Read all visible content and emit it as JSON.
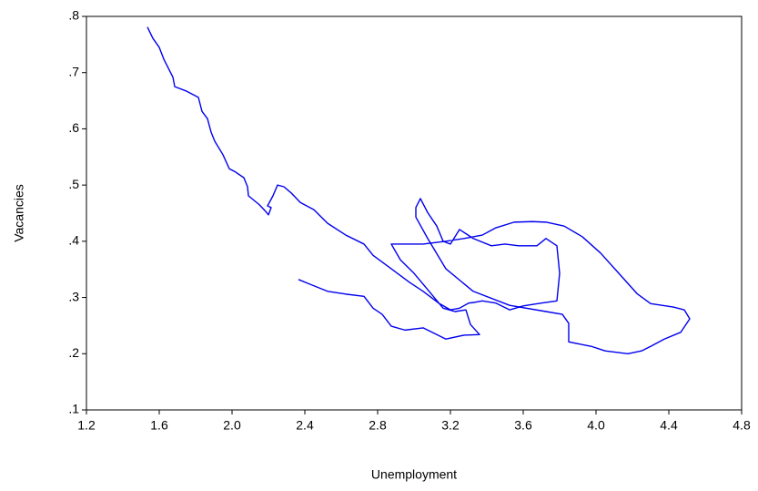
{
  "chart_data": {
    "type": "line",
    "x_label": "Unemployment",
    "y_label": "Vacancies",
    "xlim": [
      1.2,
      4.8
    ],
    "xticks": [
      1.2,
      1.6,
      {
        "value": 2.0,
        "label": "2.0"
      },
      2.4,
      2.8,
      3.2,
      3.6,
      {
        "value": 4.0,
        "label": "4.0"
      },
      4.4,
      4.8
    ],
    "ylim": [
      0.1,
      0.8
    ],
    "yticks": [
      {
        "value": 0.1,
        "label": ".1"
      },
      {
        "value": 0.2,
        "label": ".2"
      },
      {
        "value": 0.3,
        "label": ".3"
      },
      {
        "value": 0.4,
        "label": ".4"
      },
      {
        "value": 0.5,
        "label": ".5"
      },
      {
        "value": 0.6,
        "label": ".6"
      },
      {
        "value": 0.7,
        "label": ".7"
      },
      {
        "value": 0.8,
        "label": ".8"
      }
    ],
    "grid": false,
    "x": [
      1.535,
      1.565,
      1.6,
      1.625,
      1.65,
      1.675,
      1.685,
      1.75,
      1.815,
      1.835,
      1.865,
      1.885,
      1.905,
      1.95,
      1.985,
      2.015,
      2.065,
      2.085,
      2.09,
      2.15,
      2.185,
      2.2,
      2.215,
      2.195,
      2.225,
      2.25,
      2.285,
      2.325,
      2.375,
      2.45,
      2.525,
      2.625,
      2.725,
      2.775,
      2.875,
      2.975,
      3.05,
      3.135,
      3.2,
      3.25,
      3.3,
      3.325,
      3.375,
      3.45,
      3.525,
      3.6,
      3.7,
      3.785,
      3.8,
      3.785,
      3.725,
      3.675,
      3.575,
      3.5,
      3.425,
      3.325,
      3.25,
      3.2,
      3.16,
      3.125,
      3.075,
      3.035,
      3.01,
      3.01,
      3.075,
      3.175,
      3.325,
      3.525,
      3.725,
      3.815,
      3.85,
      3.85,
      3.975,
      4.05,
      4.175,
      4.25,
      4.3,
      4.375,
      4.465,
      4.515,
      4.485,
      4.425,
      4.3,
      4.225,
      4.125,
      4.025,
      3.925,
      3.825,
      3.725,
      3.65,
      3.55,
      3.45,
      3.375,
      3.275,
      3.175,
      3.05,
      2.875,
      2.925,
      3.0,
      3.075,
      3.16,
      3.225,
      3.285,
      3.31,
      3.36,
      3.275,
      3.175,
      3.05,
      2.95,
      2.875,
      2.825,
      2.775,
      2.725,
      2.625,
      2.525,
      2.425,
      2.365
    ],
    "series": [
      {
        "color": "#0000ee",
        "values": [
          0.781,
          0.761,
          0.745,
          0.724,
          0.708,
          0.692,
          0.675,
          0.667,
          0.656,
          0.631,
          0.618,
          0.594,
          0.578,
          0.554,
          0.529,
          0.524,
          0.513,
          0.497,
          0.481,
          0.465,
          0.453,
          0.447,
          0.46,
          0.463,
          0.481,
          0.5,
          0.497,
          0.486,
          0.469,
          0.456,
          0.432,
          0.411,
          0.395,
          0.375,
          0.351,
          0.327,
          0.311,
          0.29,
          0.278,
          0.281,
          0.29,
          0.291,
          0.294,
          0.29,
          0.278,
          0.285,
          0.29,
          0.294,
          0.343,
          0.392,
          0.405,
          0.392,
          0.392,
          0.395,
          0.392,
          0.405,
          0.421,
          0.395,
          0.4,
          0.427,
          0.451,
          0.476,
          0.46,
          0.443,
          0.405,
          0.351,
          0.311,
          0.286,
          0.275,
          0.27,
          0.254,
          0.221,
          0.213,
          0.205,
          0.2,
          0.205,
          0.213,
          0.226,
          0.238,
          0.262,
          0.278,
          0.283,
          0.289,
          0.307,
          0.343,
          0.379,
          0.408,
          0.427,
          0.434,
          0.435,
          0.434,
          0.424,
          0.411,
          0.405,
          0.4,
          0.395,
          0.395,
          0.367,
          0.343,
          0.314,
          0.281,
          0.275,
          0.278,
          0.252,
          0.234,
          0.233,
          0.226,
          0.246,
          0.242,
          0.249,
          0.27,
          0.281,
          0.302,
          0.306,
          0.311,
          0.324,
          0.332
        ]
      }
    ]
  }
}
